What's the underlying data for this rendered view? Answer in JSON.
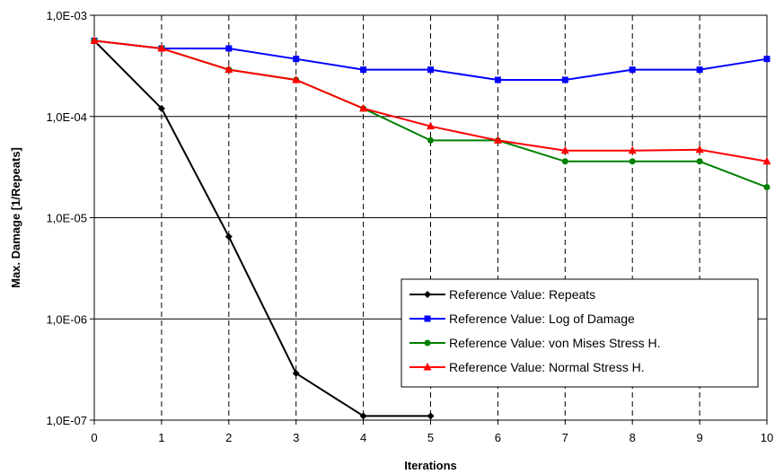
{
  "chart_data": {
    "type": "line",
    "title": "",
    "xlabel": "Iterations",
    "ylabel": "Max. Damage [1/Repeats]",
    "x": [
      0,
      1,
      2,
      3,
      4,
      5,
      6,
      7,
      8,
      9,
      10
    ],
    "xlim": [
      0,
      10
    ],
    "ylim": [
      1e-07,
      0.001
    ],
    "yscale": "log",
    "x_tick_labels": [
      "0",
      "1",
      "2",
      "3",
      "4",
      "5",
      "6",
      "7",
      "8",
      "9",
      "10"
    ],
    "y_ticks": [
      1e-07,
      1e-06,
      1e-05,
      0.0001,
      0.001
    ],
    "y_tick_labels": [
      "1,0E-07",
      "1,0E-06",
      "1,0E-05",
      "1,0E-04",
      "1,0E-03"
    ],
    "grid": "horizontal solid, vertical dashed",
    "legend_position": "bottom-right",
    "series": [
      {
        "name": "Reference Value: Repeats",
        "color": "#000000",
        "marker": "diamond",
        "x": [
          0,
          1,
          2,
          3,
          4,
          5
        ],
        "values": [
          0.00056,
          0.00012,
          6.5e-06,
          2.9e-07,
          1.1e-07,
          1.1e-07
        ]
      },
      {
        "name": "Reference Value: Log of Damage",
        "color": "#0000ff",
        "marker": "square",
        "x": [
          0,
          1,
          2,
          3,
          4,
          5,
          6,
          7,
          8,
          9,
          10
        ],
        "values": [
          0.00056,
          0.00047,
          0.00047,
          0.00037,
          0.00029,
          0.00029,
          0.00023,
          0.00023,
          0.00029,
          0.00029,
          0.00037
        ]
      },
      {
        "name": "Reference Value: von Mises Stress H.",
        "color": "#008000",
        "marker": "circle",
        "x": [
          0,
          1,
          2,
          3,
          4,
          5,
          6,
          7,
          8,
          9,
          10
        ],
        "values": [
          0.00056,
          0.00047,
          0.00029,
          0.00023,
          0.00012,
          5.8e-05,
          5.8e-05,
          3.6e-05,
          3.6e-05,
          3.6e-05,
          2e-05
        ]
      },
      {
        "name": "Reference Value: Normal Stress H.",
        "color": "#ff0000",
        "marker": "triangle",
        "x": [
          0,
          1,
          2,
          3,
          4,
          5,
          6,
          7,
          8,
          9,
          10
        ],
        "values": [
          0.00056,
          0.00047,
          0.00029,
          0.00023,
          0.00012,
          8e-05,
          5.8e-05,
          4.6e-05,
          4.6e-05,
          4.7e-05,
          3.6e-05
        ]
      }
    ]
  }
}
